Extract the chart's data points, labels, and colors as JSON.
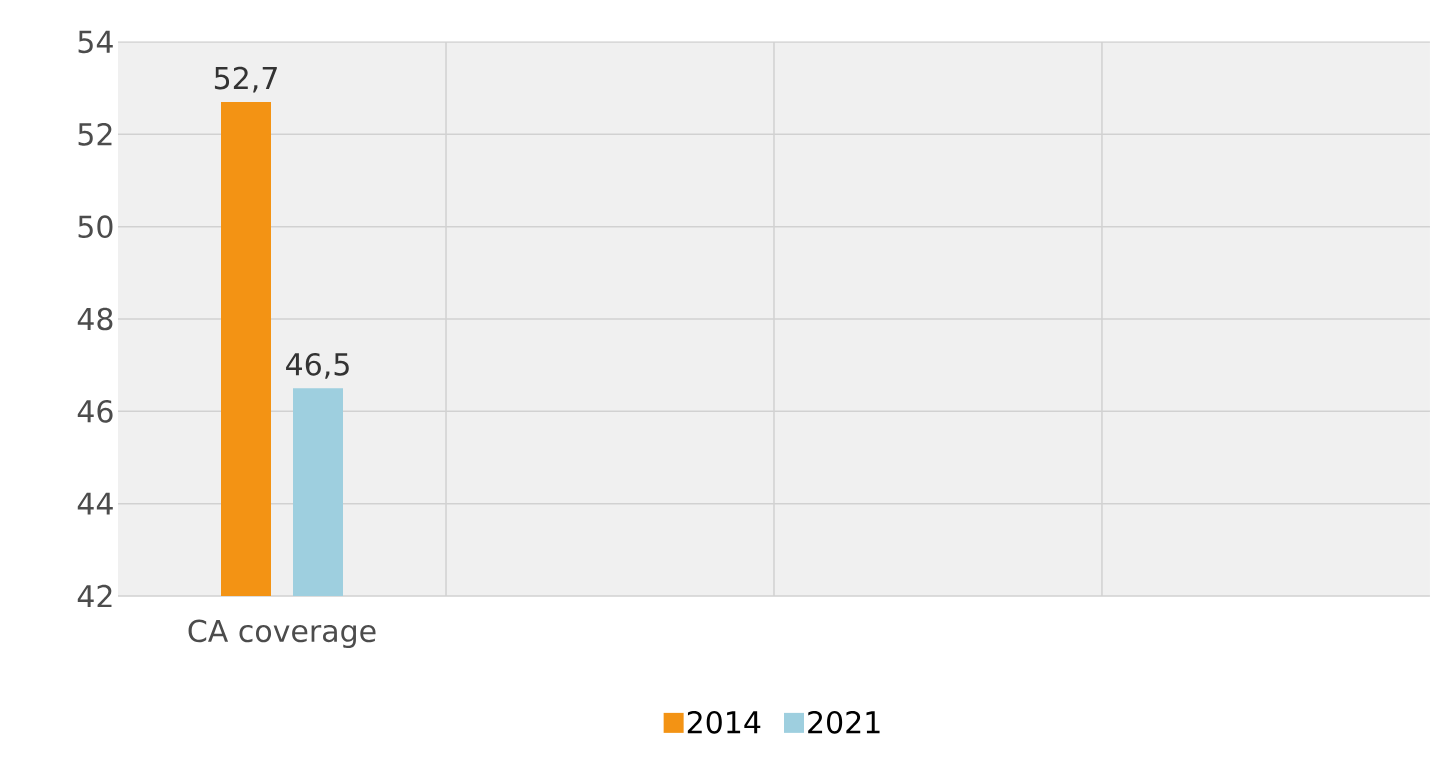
{
  "chart_data": {
    "type": "bar",
    "categories": [
      "CA coverage",
      null,
      null,
      null
    ],
    "series": [
      {
        "name": "2014",
        "color": "#f39314",
        "values": [
          52.7,
          null,
          null,
          null
        ],
        "value_labels": [
          "52,7",
          null,
          null,
          null
        ]
      },
      {
        "name": "2021",
        "color": "#9ecfdf",
        "values": [
          46.5,
          null,
          null,
          null
        ],
        "value_labels": [
          "46,5",
          null,
          null,
          null
        ]
      }
    ],
    "ylim": [
      42,
      54
    ],
    "yticks": [
      42,
      44,
      46,
      48,
      50,
      52,
      54
    ],
    "grid": true,
    "legend": "bottom"
  }
}
